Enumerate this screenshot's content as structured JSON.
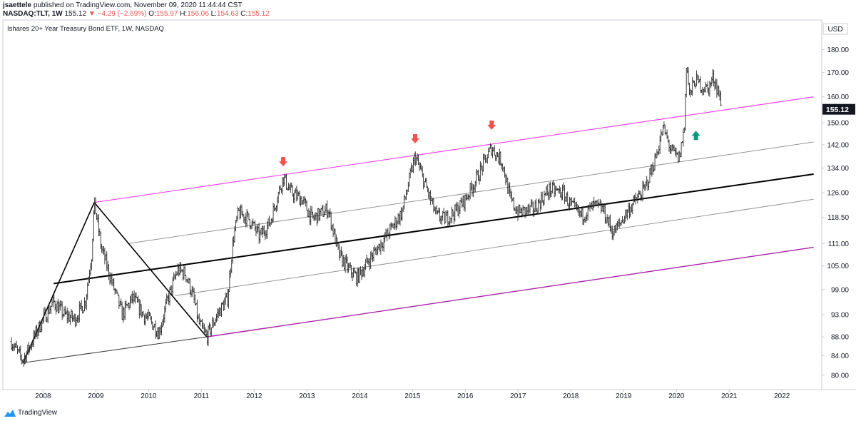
{
  "header": {
    "user": "jsaettele",
    "published_text": "published on TradingView.com, November 09, 2020 11:44:44 CST",
    "symbol": "NASDAQ:TLT, 1W",
    "last": "155.12",
    "change": "−4.29 (−2.69%)",
    "open_label": "O:",
    "open": "155.97",
    "high_label": "H:",
    "high": "156.06",
    "low_label": "L:",
    "low": "154.63",
    "close_label": "C:",
    "close": "155.12",
    "down_arrow": "down-triangle-icon"
  },
  "colors": {
    "down": "#ef5350",
    "pitchfork_upper": "#ee44ee",
    "pitchfork_lower": "#aa22aa",
    "median": "#000000",
    "mid_lines": "#888888",
    "up_arrow": "#089981",
    "price_bars": "#2a2a2a"
  },
  "chart_data": {
    "type": "ohlc",
    "title": "Ishares 20+ Year Treasury Bond ETF, 1W, NASDAQ",
    "currency": "USD",
    "y_scale": "log",
    "ylim": [
      78,
      188
    ],
    "xlim": [
      2007.4,
      2022.7
    ],
    "last_price": 155.12,
    "y_ticks": [
      "180.00",
      "170.00",
      "160.00",
      "150.00",
      "142.00",
      "134.00",
      "126.00",
      "118.50",
      "111.00",
      "105.00",
      "99.00",
      "93.00",
      "88.00",
      "84.00",
      "80.00"
    ],
    "y_tick_values": [
      180,
      170,
      160,
      150,
      142,
      134,
      126,
      118.5,
      111,
      105,
      99,
      93,
      88,
      84,
      80
    ],
    "x_ticks": [
      "2008",
      "2009",
      "2010",
      "2011",
      "2012",
      "2013",
      "2014",
      "2015",
      "2016",
      "2017",
      "2018",
      "2019",
      "2020",
      "2021",
      "2022"
    ],
    "x_tick_values": [
      2008,
      2009,
      2010,
      2011,
      2012,
      2013,
      2014,
      2015,
      2016,
      2017,
      2018,
      2019,
      2020,
      2021,
      2022
    ],
    "price_path": [
      [
        2007.4,
        87
      ],
      [
        2007.55,
        84
      ],
      [
        2007.62,
        83
      ],
      [
        2007.75,
        86
      ],
      [
        2008.0,
        92
      ],
      [
        2008.2,
        96
      ],
      [
        2008.4,
        93
      ],
      [
        2008.6,
        92
      ],
      [
        2008.8,
        96
      ],
      [
        2008.92,
        108
      ],
      [
        2008.97,
        123
      ],
      [
        2009.1,
        110
      ],
      [
        2009.3,
        101
      ],
      [
        2009.5,
        93
      ],
      [
        2009.7,
        97
      ],
      [
        2009.9,
        93
      ],
      [
        2010.0,
        92
      ],
      [
        2010.2,
        89
      ],
      [
        2010.35,
        96
      ],
      [
        2010.55,
        104
      ],
      [
        2010.7,
        103
      ],
      [
        2010.85,
        97
      ],
      [
        2010.95,
        91
      ],
      [
        2011.1,
        88
      ],
      [
        2011.3,
        93
      ],
      [
        2011.5,
        97
      ],
      [
        2011.6,
        112
      ],
      [
        2011.7,
        120
      ],
      [
        2011.9,
        118
      ],
      [
        2012.1,
        113
      ],
      [
        2012.3,
        117
      ],
      [
        2012.55,
        131
      ],
      [
        2012.7,
        126
      ],
      [
        2012.9,
        124
      ],
      [
        2013.1,
        118
      ],
      [
        2013.4,
        121
      ],
      [
        2013.6,
        108
      ],
      [
        2013.8,
        104
      ],
      [
        2013.95,
        102
      ],
      [
        2014.2,
        107
      ],
      [
        2014.5,
        113
      ],
      [
        2014.8,
        120
      ],
      [
        2015.05,
        138
      ],
      [
        2015.25,
        128
      ],
      [
        2015.45,
        119
      ],
      [
        2015.6,
        118
      ],
      [
        2015.8,
        120
      ],
      [
        2016.0,
        124
      ],
      [
        2016.2,
        130
      ],
      [
        2016.5,
        141
      ],
      [
        2016.7,
        136
      ],
      [
        2016.85,
        124
      ],
      [
        2017.0,
        120
      ],
      [
        2017.3,
        121
      ],
      [
        2017.6,
        127
      ],
      [
        2017.85,
        126
      ],
      [
        2018.0,
        122
      ],
      [
        2018.2,
        119
      ],
      [
        2018.45,
        122
      ],
      [
        2018.6,
        121
      ],
      [
        2018.8,
        114
      ],
      [
        2018.9,
        116
      ],
      [
        2019.1,
        121
      ],
      [
        2019.4,
        127
      ],
      [
        2019.6,
        137
      ],
      [
        2019.75,
        148
      ],
      [
        2019.9,
        140
      ],
      [
        2020.05,
        137
      ],
      [
        2020.15,
        148
      ],
      [
        2020.19,
        175
      ],
      [
        2020.25,
        160
      ],
      [
        2020.35,
        167
      ],
      [
        2020.5,
        164
      ],
      [
        2020.6,
        163
      ],
      [
        2020.7,
        168
      ],
      [
        2020.8,
        162
      ],
      [
        2020.86,
        155.12
      ]
    ],
    "pitchfork": {
      "pivot_a": [
        2007.62,
        82.5
      ],
      "pivot_b": [
        2008.97,
        123
      ],
      "pivot_c": [
        2011.1,
        88
      ],
      "median_line": [
        [
          2008.2,
          100.5
        ],
        [
          2022.6,
          132
        ]
      ],
      "upper_line": [
        [
          2008.97,
          123
        ],
        [
          2022.6,
          160
        ]
      ],
      "lower_line": [
        [
          2011.1,
          88
        ],
        [
          2022.6,
          110
        ]
      ],
      "inner_upper": [
        [
          2009.6,
          111
        ],
        [
          2022.6,
          143
        ]
      ],
      "inner_lower": [
        [
          2010.5,
          97.5
        ],
        [
          2022.6,
          124
        ]
      ],
      "handle_line": [
        [
          2007.62,
          82.5
        ],
        [
          2011.1,
          88
        ]
      ]
    },
    "annotations": [
      {
        "type": "down-arrow",
        "x": 2012.55,
        "y": 136,
        "color": "#ef5350"
      },
      {
        "type": "down-arrow",
        "x": 2015.05,
        "y": 144,
        "color": "#ef5350"
      },
      {
        "type": "down-arrow",
        "x": 2016.5,
        "y": 149,
        "color": "#ef5350"
      },
      {
        "type": "up-arrow",
        "x": 2020.37,
        "y": 145.5,
        "color": "#089981"
      }
    ]
  },
  "footer": {
    "brand": "TradingView",
    "icon": "tradingview-logo-icon"
  }
}
